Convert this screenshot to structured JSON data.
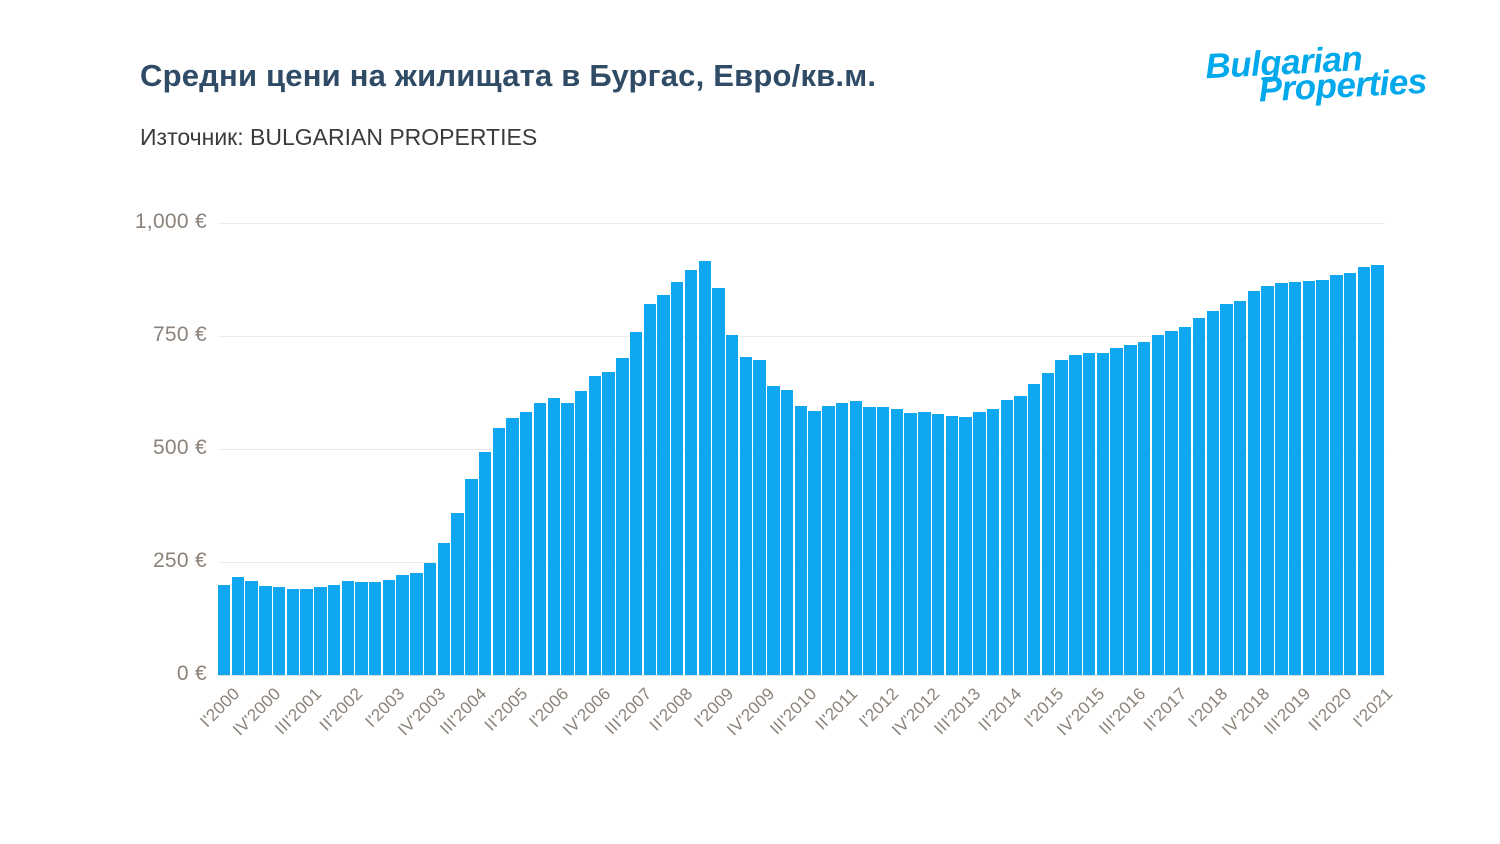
{
  "header": {
    "title": "Средни цени на жилищата в Бургас, Евро/кв.м.",
    "source": "Източник: BULGARIAN PROPERTIES"
  },
  "logo": {
    "line1": "Bulgarian",
    "line2": "Properties",
    "color": "#00a8ec"
  },
  "colors": {
    "title": "#2f4b66",
    "subtitle": "#3b3b3b",
    "axis_text": "#8b8279",
    "gridline": "#ececec",
    "bar": "#0fa8f0"
  },
  "chart_data": {
    "type": "bar",
    "title": "Средни цени на жилищата в Бургас, Евро/кв.м.",
    "source": "Източник: BULGARIAN PROPERTIES",
    "unit": "EUR/sq.m",
    "xlabel": "",
    "ylabel": "",
    "grid": true,
    "legend": false,
    "ylim": [
      0,
      1000
    ],
    "y_ticks": [
      0,
      250,
      500,
      750,
      1000
    ],
    "y_tick_labels": [
      "0 €",
      "250 €",
      "500 €",
      "750 €",
      "1,000 €"
    ],
    "x_tick_step": 3,
    "x_tick_labels": [
      "I'2000",
      "IV'2000",
      "III'2001",
      "II'2002",
      "I'2003",
      "IV'2003",
      "III'2004",
      "II'2005",
      "I'2006",
      "IV'2006",
      "III'2007",
      "II'2008",
      "I'2009",
      "IV'2009",
      "III'2010",
      "II'2011",
      "I'2012",
      "IV'2012",
      "III'2013",
      "II'2014",
      "I'2015",
      "IV'2015",
      "III'2016",
      "II'2017",
      "I'2018",
      "IV'2018",
      "III'2019",
      "II'2020",
      "I'2021"
    ],
    "categories": [
      "I'2000",
      "II'2000",
      "III'2000",
      "IV'2000",
      "I'2001",
      "II'2001",
      "III'2001",
      "IV'2001",
      "I'2002",
      "II'2002",
      "III'2002",
      "IV'2002",
      "I'2003",
      "II'2003",
      "III'2003",
      "IV'2003",
      "I'2004",
      "II'2004",
      "III'2004",
      "IV'2004",
      "I'2005",
      "II'2005",
      "III'2005",
      "IV'2005",
      "I'2006",
      "II'2006",
      "III'2006",
      "IV'2006",
      "I'2007",
      "II'2007",
      "III'2007",
      "IV'2007",
      "I'2008",
      "II'2008",
      "III'2008",
      "IV'2008",
      "I'2009",
      "II'2009",
      "III'2009",
      "IV'2009",
      "I'2010",
      "II'2010",
      "III'2010",
      "IV'2010",
      "I'2011",
      "II'2011",
      "III'2011",
      "IV'2011",
      "I'2012",
      "II'2012",
      "III'2012",
      "IV'2012",
      "I'2013",
      "II'2013",
      "III'2013",
      "IV'2013",
      "I'2014",
      "II'2014",
      "III'2014",
      "IV'2014",
      "I'2015",
      "II'2015",
      "III'2015",
      "IV'2015",
      "I'2016",
      "II'2016",
      "III'2016",
      "IV'2016",
      "I'2017",
      "II'2017",
      "III'2017",
      "IV'2017",
      "I'2018",
      "II'2018",
      "III'2018",
      "IV'2018",
      "I'2019",
      "II'2019",
      "III'2019",
      "IV'2019",
      "I'2020",
      "II'2020",
      "III'2020",
      "IV'2020",
      "I'2021"
    ],
    "values": [
      200,
      217,
      209,
      197,
      195,
      190,
      191,
      194,
      200,
      207,
      205,
      205,
      210,
      222,
      226,
      248,
      292,
      358,
      433,
      494,
      547,
      568,
      582,
      602,
      612,
      602,
      628,
      661,
      670,
      702,
      759,
      821,
      841,
      869,
      897,
      916,
      856,
      752,
      703,
      697,
      639,
      631,
      596,
      583,
      596,
      601,
      607,
      594,
      592,
      588,
      579,
      582,
      577,
      572,
      570,
      581,
      589,
      608,
      618,
      643,
      669,
      697,
      708,
      713,
      712,
      723,
      730,
      737,
      752,
      760,
      771,
      790,
      806,
      821,
      828,
      849,
      860,
      868,
      870,
      871,
      874,
      885,
      890,
      903,
      907
    ]
  }
}
